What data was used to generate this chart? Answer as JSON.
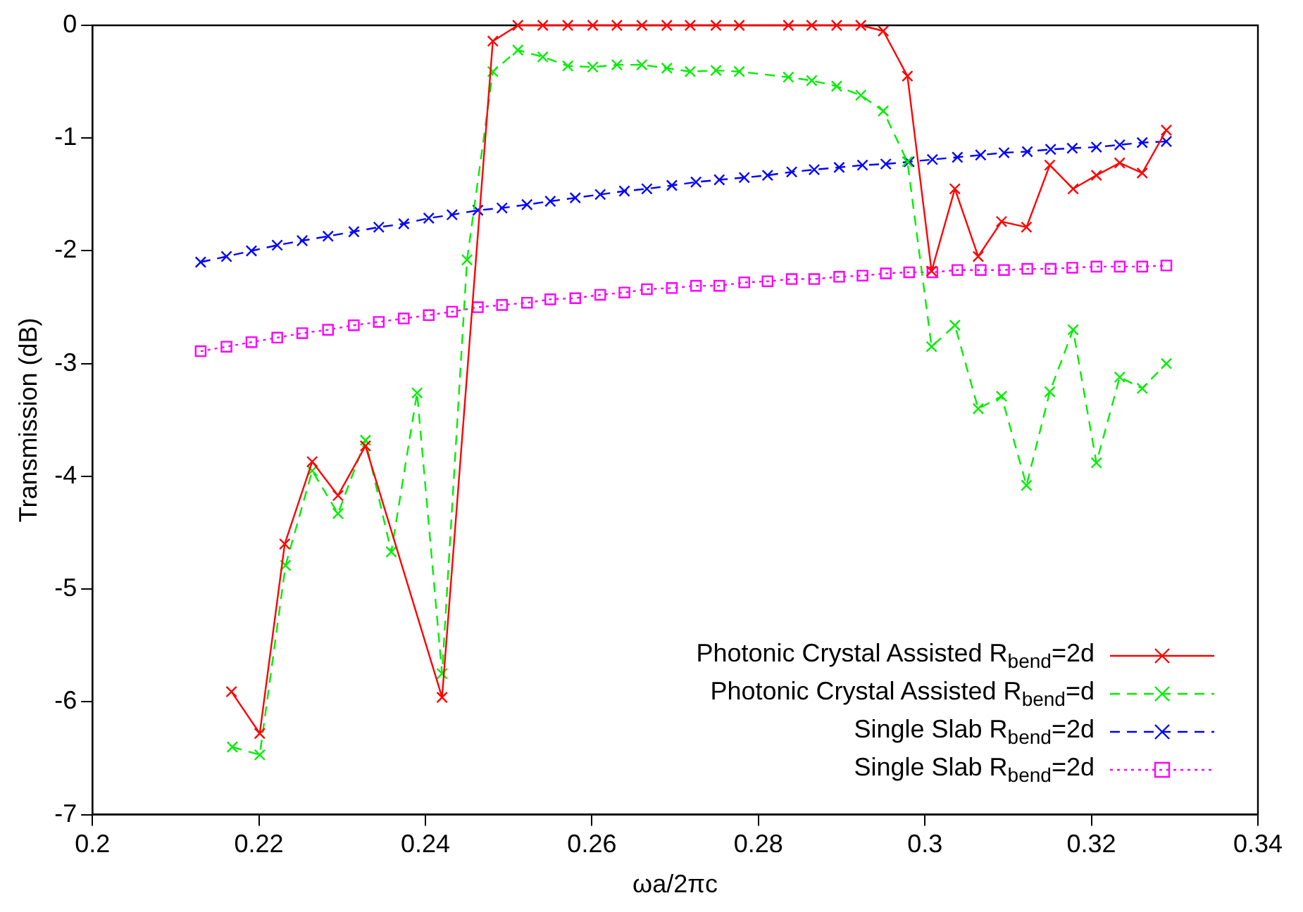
{
  "chart_data": {
    "type": "line",
    "xlabel": "ωa/2πc",
    "ylabel": "Transmission (dB)",
    "xlim": [
      0.2,
      0.34
    ],
    "xticks": [
      0.2,
      0.22,
      0.24,
      0.26,
      0.28,
      0.3,
      0.32,
      0.34
    ],
    "ylim": [
      -7,
      0
    ],
    "yticks": [
      -7,
      -6,
      -5,
      -4,
      -3,
      -2,
      -1,
      0
    ],
    "grid": false,
    "legend": "bottom right",
    "series": [
      {
        "name": "Photonic Crystal Assisted R$_{bend}$=2d",
        "color": "#ff0000",
        "marker": "cross",
        "line_style": "solid",
        "x": [
          0.2167,
          0.2201,
          0.2231,
          0.2264,
          0.2295,
          0.2328,
          0.242,
          0.2481,
          0.2511,
          0.2541,
          0.2571,
          0.2601,
          0.263,
          0.266,
          0.269,
          0.2718,
          0.2749,
          0.2777,
          0.2836,
          0.2864,
          0.2894,
          0.2923,
          0.295,
          0.2979,
          0.3008,
          0.3036,
          0.3064,
          0.3092,
          0.3122,
          0.315,
          0.3178,
          0.3206,
          0.3234,
          0.3261,
          0.329
        ],
        "values": [
          -5.91,
          -6.28,
          -4.6,
          -3.87,
          -4.17,
          -3.73,
          -5.96,
          -0.14,
          0,
          0,
          0,
          0,
          0,
          0,
          0,
          0,
          0,
          0,
          0,
          0,
          0,
          0,
          -0.05,
          -0.45,
          -2.18,
          -1.45,
          -2.05,
          -1.74,
          -1.79,
          -1.24,
          -1.45,
          -1.33,
          -1.22,
          -1.31,
          -0.93
        ]
      },
      {
        "name": "Photonic Crystal Assisted R$_{bend}$=d",
        "color": "#00ee00",
        "marker": "cross",
        "line_style": "dashed",
        "x": [
          0.2168,
          0.2201,
          0.2232,
          0.2264,
          0.2295,
          0.2328,
          0.2359,
          0.239,
          0.242,
          0.245,
          0.2481,
          0.2511,
          0.2541,
          0.2571,
          0.2601,
          0.263,
          0.266,
          0.269,
          0.2718,
          0.2749,
          0.2777,
          0.2836,
          0.2864,
          0.2894,
          0.2923,
          0.295,
          0.2979,
          0.3008,
          0.3036,
          0.3064,
          0.3092,
          0.3122,
          0.315,
          0.3178,
          0.3206,
          0.3234,
          0.3261,
          0.329
        ],
        "values": [
          -6.4,
          -6.47,
          -4.79,
          -3.95,
          -4.33,
          -3.68,
          -4.67,
          -3.26,
          -5.75,
          -2.08,
          -0.41,
          -0.22,
          -0.28,
          -0.36,
          -0.37,
          -0.35,
          -0.35,
          -0.38,
          -0.41,
          -0.4,
          -0.41,
          -0.46,
          -0.49,
          -0.54,
          -0.62,
          -0.76,
          -1.21,
          -2.85,
          -2.66,
          -3.4,
          -3.29,
          -4.08,
          -3.25,
          -2.7,
          -3.88,
          -3.12,
          -3.22,
          -3.0
        ]
      },
      {
        "name": "Single Slab R$_{bend}$=2d",
        "color": "#0000ff",
        "marker": "cross",
        "line_style": "dashed",
        "x": [
          0.213,
          0.2161,
          0.2191,
          0.2222,
          0.2252,
          0.2283,
          0.2314,
          0.2344,
          0.2374,
          0.2404,
          0.2432,
          0.2463,
          0.2492,
          0.2522,
          0.255,
          0.258,
          0.261,
          0.2639,
          0.2666,
          0.2696,
          0.2725,
          0.2753,
          0.2783,
          0.2811,
          0.284,
          0.2867,
          0.2897,
          0.2925,
          0.2953,
          0.2981,
          0.3009,
          0.3039,
          0.3067,
          0.3095,
          0.3123,
          0.3151,
          0.3177,
          0.3206,
          0.3234,
          0.3261,
          0.329
        ],
        "values": [
          -2.1,
          -2.05,
          -2.0,
          -1.95,
          -1.91,
          -1.87,
          -1.83,
          -1.79,
          -1.76,
          -1.71,
          -1.68,
          -1.64,
          -1.62,
          -1.59,
          -1.56,
          -1.53,
          -1.5,
          -1.47,
          -1.45,
          -1.42,
          -1.39,
          -1.37,
          -1.35,
          -1.33,
          -1.3,
          -1.28,
          -1.26,
          -1.24,
          -1.23,
          -1.21,
          -1.19,
          -1.17,
          -1.15,
          -1.13,
          -1.12,
          -1.1,
          -1.09,
          -1.08,
          -1.06,
          -1.04,
          -1.03
        ]
      },
      {
        "name": "Single Slab R$_{bend}$=2d",
        "color": "#ff00ff",
        "marker": "square",
        "line_style": "dotted",
        "x": [
          0.213,
          0.2161,
          0.2191,
          0.2222,
          0.2252,
          0.2283,
          0.2314,
          0.2344,
          0.2374,
          0.2404,
          0.2432,
          0.2463,
          0.2492,
          0.2522,
          0.255,
          0.258,
          0.261,
          0.2639,
          0.2666,
          0.2696,
          0.2725,
          0.2753,
          0.2783,
          0.2811,
          0.284,
          0.2867,
          0.2897,
          0.2925,
          0.2953,
          0.2981,
          0.3009,
          0.3039,
          0.3067,
          0.3095,
          0.3123,
          0.3151,
          0.3177,
          0.3206,
          0.3234,
          0.3261,
          0.329
        ],
        "values": [
          -2.89,
          -2.85,
          -2.81,
          -2.77,
          -2.73,
          -2.7,
          -2.66,
          -2.63,
          -2.6,
          -2.57,
          -2.54,
          -2.5,
          -2.48,
          -2.46,
          -2.43,
          -2.42,
          -2.39,
          -2.37,
          -2.34,
          -2.33,
          -2.31,
          -2.31,
          -2.28,
          -2.27,
          -2.25,
          -2.25,
          -2.23,
          -2.22,
          -2.2,
          -2.19,
          -2.19,
          -2.17,
          -2.17,
          -2.17,
          -2.16,
          -2.16,
          -2.15,
          -2.14,
          -2.14,
          -2.14,
          -2.13
        ]
      }
    ]
  }
}
